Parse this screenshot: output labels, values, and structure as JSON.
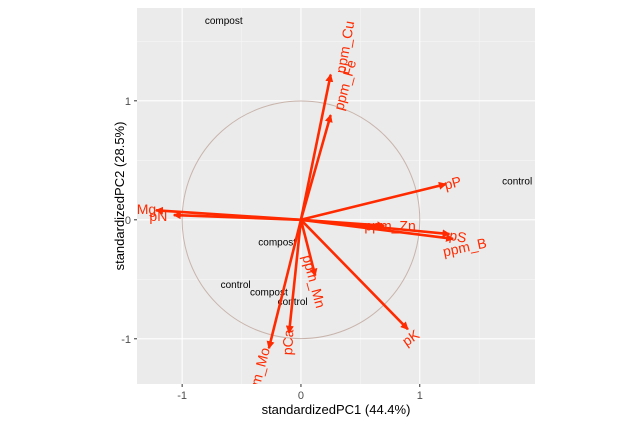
{
  "chart_data": {
    "type": "scatter",
    "subtype": "pca-biplot",
    "xlabel": "standardizedPC1 (44.4%)",
    "ylabel": "standardizedPC2 (28.5%)",
    "xlim": [
      -1.38,
      1.97
    ],
    "ylim": [
      -1.38,
      1.78
    ],
    "x_ticks": [
      -1,
      0,
      1
    ],
    "y_ticks": [
      -1,
      0,
      1
    ],
    "x_tick_labels": [
      "-1",
      "0",
      "1"
    ],
    "y_tick_labels": [
      "-1",
      "0",
      "1"
    ],
    "grid": true,
    "background": "#ebebeb",
    "arrow_color": "#ff2a00",
    "circle_color": "#c8b4ac",
    "circle_radius": 1,
    "loadings": [
      {
        "name": "ppm_Cu",
        "x": 0.25,
        "y": 1.22,
        "label_x": 0.38,
        "label_y": 1.45,
        "angle": -80
      },
      {
        "name": "ppm_Fe",
        "x": 0.25,
        "y": 0.88,
        "label_x": 0.38,
        "label_y": 1.13,
        "angle": -75
      },
      {
        "name": "pP",
        "x": 1.22,
        "y": 0.3,
        "label_x": 1.28,
        "label_y": 0.3,
        "angle": -15
      },
      {
        "name": "ppm_Zn",
        "x": 0.7,
        "y": -0.05,
        "label_x": 0.75,
        "label_y": -0.06,
        "angle": 0
      },
      {
        "name": "pS",
        "x": 1.25,
        "y": -0.12,
        "label_x": 1.32,
        "label_y": -0.15,
        "angle": 10
      },
      {
        "name": "ppm_B",
        "x": 1.28,
        "y": -0.16,
        "label_x": 1.38,
        "label_y": -0.24,
        "angle": -12
      },
      {
        "name": "pK",
        "x": 0.9,
        "y": -0.92,
        "label_x": 0.93,
        "label_y": -1.0,
        "angle": -35
      },
      {
        "name": "ppm_Mn",
        "x": 0.12,
        "y": -0.47,
        "label_x": 0.1,
        "label_y": -0.52,
        "angle": 75
      },
      {
        "name": "pCa",
        "x": -0.1,
        "y": -0.95,
        "label_x": -0.1,
        "label_y": -1.03,
        "angle": -87
      },
      {
        "name": "ppm_Mo",
        "x": -0.27,
        "y": -1.08,
        "label_x": -0.35,
        "label_y": -1.3,
        "angle": -75
      },
      {
        "name": "Mg",
        "x": -1.22,
        "y": 0.08,
        "label_x": -1.3,
        "label_y": 0.08,
        "angle": 0
      },
      {
        "name": "pN",
        "x": -1.07,
        "y": 0.04,
        "label_x": -1.2,
        "label_y": 0.02,
        "angle": 0
      }
    ],
    "observations": [
      {
        "label": "compost",
        "x": -0.65,
        "y": 1.67
      },
      {
        "label": "control",
        "x": 1.82,
        "y": 0.32
      },
      {
        "label": "compost",
        "x": -0.2,
        "y": -0.19
      },
      {
        "label": "control",
        "x": -0.55,
        "y": -0.55
      },
      {
        "label": "compost",
        "x": -0.27,
        "y": -0.61
      },
      {
        "label": "control",
        "x": -0.07,
        "y": -0.69
      }
    ]
  }
}
